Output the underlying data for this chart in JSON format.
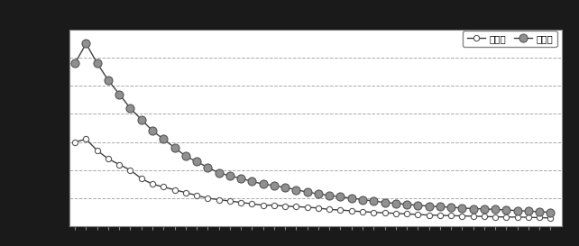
{
  "title": "",
  "legend_labels": [
    "一般局",
    "自排局"
  ],
  "years": [
    1970,
    1971,
    1972,
    1973,
    1974,
    1975,
    1976,
    1977,
    1978,
    1979,
    1980,
    1981,
    1982,
    1983,
    1984,
    1985,
    1986,
    1987,
    1988,
    1989,
    1990,
    1991,
    1992,
    1993,
    1994,
    1995,
    1996,
    1997,
    1998,
    1999,
    2000,
    2001,
    2002,
    2003,
    2004,
    2005,
    2006,
    2007,
    2008,
    2009,
    2010,
    2011,
    2012,
    2013
  ],
  "ippan": [
    3.0,
    3.1,
    2.7,
    2.4,
    2.2,
    2.0,
    1.7,
    1.5,
    1.4,
    1.3,
    1.2,
    1.1,
    1.0,
    0.95,
    0.9,
    0.85,
    0.8,
    0.75,
    0.75,
    0.72,
    0.7,
    0.68,
    0.65,
    0.6,
    0.58,
    0.55,
    0.52,
    0.5,
    0.48,
    0.46,
    0.44,
    0.42,
    0.4,
    0.39,
    0.38,
    0.37,
    0.36,
    0.35,
    0.34,
    0.33,
    0.33,
    0.32,
    0.31,
    0.3
  ],
  "jihai": [
    5.8,
    6.5,
    5.8,
    5.2,
    4.7,
    4.2,
    3.8,
    3.4,
    3.1,
    2.8,
    2.5,
    2.3,
    2.1,
    1.9,
    1.8,
    1.7,
    1.6,
    1.5,
    1.45,
    1.38,
    1.3,
    1.22,
    1.15,
    1.1,
    1.05,
    1.0,
    0.95,
    0.9,
    0.85,
    0.82,
    0.78,
    0.75,
    0.72,
    0.7,
    0.68,
    0.65,
    0.63,
    0.62,
    0.6,
    0.58,
    0.56,
    0.54,
    0.52,
    0.5
  ],
  "ippan_color": "#ffffff",
  "jihai_color": "#909090",
  "outer_bg_color": "#1a1a1a",
  "plot_bg_color": "#ffffff",
  "grid_color": "#aaaaaa",
  "ylim": [
    0.0,
    7.0
  ],
  "xlim": [
    1969.5,
    2014.0
  ],
  "marker_size_ippan": 4.5,
  "marker_size_jihai": 6.5,
  "line_color": "#404040",
  "line_width": 1.0,
  "marker_edge_color": "#555555",
  "marker_edge_width": 0.8
}
